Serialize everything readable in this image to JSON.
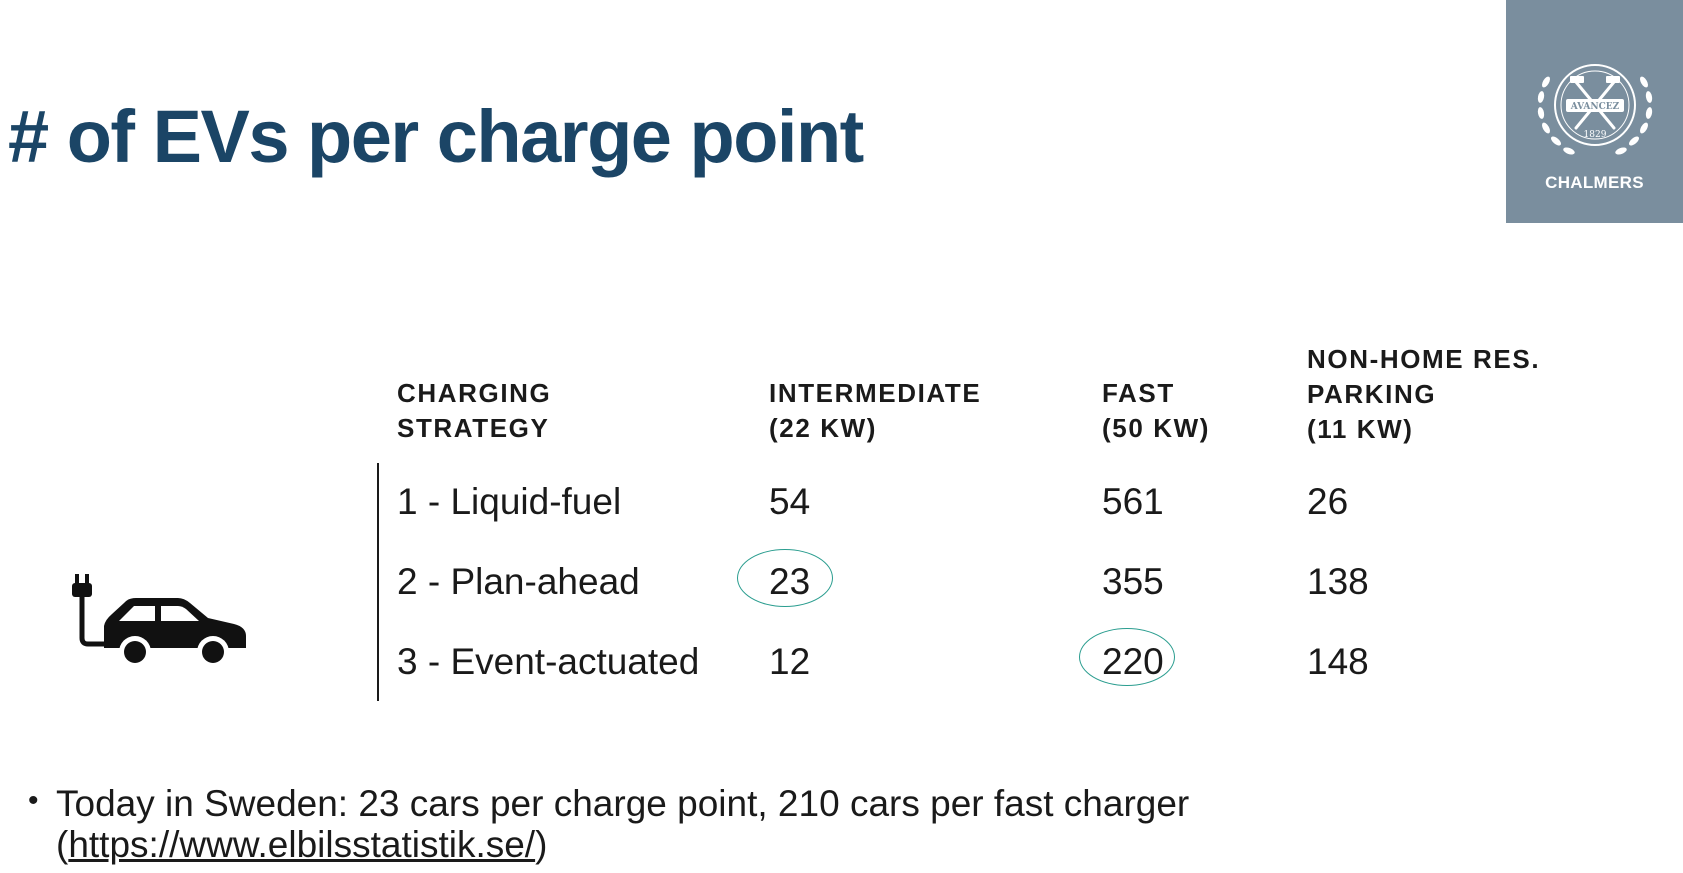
{
  "slide": {
    "title": "# of EVs per charge point"
  },
  "logo": {
    "seal_motto": "AVANCEZ",
    "seal_year": "1829",
    "text": "CHALMERS"
  },
  "table": {
    "headers": [
      [
        "CHARGING",
        "STRATEGY"
      ],
      [
        "INTERMEDIATE",
        "(22 KW)"
      ],
      [
        "FAST",
        "(50 KW)"
      ],
      [
        "NON-HOME RES.",
        "PARKING",
        "(11 KW)"
      ]
    ],
    "rows": [
      {
        "strategy": "1 - Liquid-fuel",
        "intermediate": "54",
        "fast": "561",
        "parking": "26"
      },
      {
        "strategy": "2 - Plan-ahead",
        "intermediate": "23",
        "fast": "355",
        "parking": "138"
      },
      {
        "strategy": "3 - Event-actuated",
        "intermediate": "12",
        "fast": "220",
        "parking": "148"
      }
    ]
  },
  "icons": {
    "car": "electric-car-plug-icon",
    "bullet": "bullet-dot-icon"
  },
  "colors": {
    "title": "#1b4566",
    "logo_background": "#7a8e9e",
    "highlight": "#2a9d8f"
  },
  "note": {
    "bullet": "•",
    "line1": "Today in Sweden: 23 cars per charge point, 210 cars per fast charger",
    "open_paren": "(",
    "link": "https://www.elbilsstatistik.se/",
    "close_paren": ")"
  }
}
